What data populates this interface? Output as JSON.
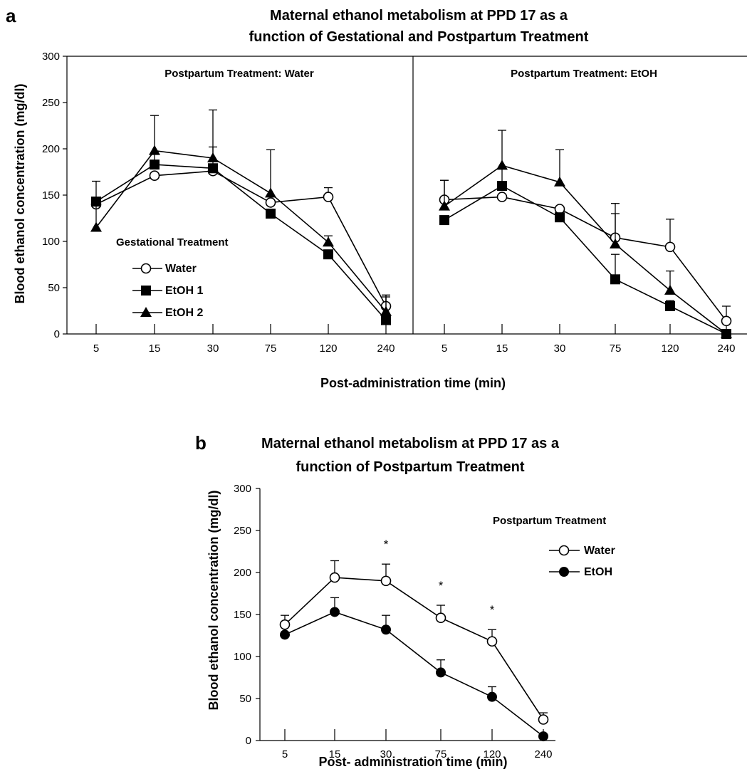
{
  "chart_data": [
    {
      "id": "a",
      "type": "line",
      "panel_letter": "a",
      "title_lines": [
        "Maternal ethanol metabolism at  PPD 17 as a",
        "function of Gestational and Postpartum Treatment"
      ],
      "xlabel": "Post-administration time (min)",
      "ylabel": "Blood ethanol concentration (mg/dl)",
      "ylim": [
        0,
        300
      ],
      "yticks": [
        0,
        50,
        100,
        150,
        200,
        250,
        300
      ],
      "categories": [
        "5",
        "15",
        "30",
        "75",
        "120",
        "240"
      ],
      "legend": {
        "title": "Gestational Treatment",
        "placement": "left, inside left sub-panel",
        "entries": [
          "Water",
          "EtOH 1",
          "EtOH 2"
        ]
      },
      "subpanels": [
        {
          "label": "Postpartum Treatment: Water",
          "series": [
            {
              "name": "Water",
              "marker": "open-circle",
              "values": [
                140,
                171,
                176,
                142,
                148,
                30
              ],
              "errors": [
                0,
                0,
                0,
                0,
                10,
                12
              ]
            },
            {
              "name": "EtOH 1",
              "marker": "filled-square",
              "values": [
                143,
                183,
                179,
                130,
                86,
                15
              ],
              "errors": [
                0,
                12,
                23,
                0,
                0,
                25
              ]
            },
            {
              "name": "EtOH 2",
              "marker": "filled-triangle",
              "values": [
                115,
                198,
                190,
                152,
                99,
                24
              ],
              "errors": [
                50,
                38,
                52,
                47,
                7,
                18
              ]
            }
          ]
        },
        {
          "label": "Postpartum Treatment: EtOH",
          "series": [
            {
              "name": "Water",
              "marker": "open-circle",
              "values": [
                145,
                148,
                135,
                104,
                94,
                14
              ],
              "errors": [
                21,
                0,
                0,
                37,
                30,
                16
              ]
            },
            {
              "name": "EtOH 1",
              "marker": "filled-square",
              "values": [
                123,
                160,
                126,
                59,
                30,
                0
              ],
              "errors": [
                0,
                20,
                0,
                27,
                6,
                0
              ]
            },
            {
              "name": "EtOH 2",
              "marker": "filled-triangle",
              "values": [
                138,
                182,
                164,
                97,
                47,
                0
              ],
              "errors": [
                28,
                38,
                35,
                33,
                21,
                0
              ]
            }
          ]
        }
      ]
    },
    {
      "id": "b",
      "type": "line",
      "panel_letter": "b",
      "title_lines": [
        "Maternal ethanol metabolism at PPD 17 as a",
        "function of Postpartum Treatment"
      ],
      "xlabel": "Post- administration time (min)",
      "ylabel": "Blood ethanol concentration (mg/dl)",
      "ylim": [
        0,
        300
      ],
      "yticks": [
        0,
        50,
        100,
        150,
        200,
        250,
        300
      ],
      "categories": [
        "5",
        "15",
        "30",
        "75",
        "120",
        "240"
      ],
      "legend": {
        "title": "Postpartum Treatment",
        "placement": "top-right",
        "entries": [
          "Water",
          "EtOH"
        ]
      },
      "significance": {
        "symbol": "*",
        "categories": [
          "30",
          "75",
          "120"
        ]
      },
      "series": [
        {
          "name": "Water",
          "marker": "open-circle",
          "values": [
            138,
            194,
            190,
            146,
            118,
            25
          ],
          "errors": [
            11,
            20,
            20,
            15,
            14,
            8
          ]
        },
        {
          "name": "EtOH",
          "marker": "filled-circle",
          "values": [
            126,
            153,
            132,
            81,
            52,
            5
          ],
          "errors": [
            0,
            17,
            17,
            15,
            12,
            0
          ]
        }
      ]
    }
  ]
}
